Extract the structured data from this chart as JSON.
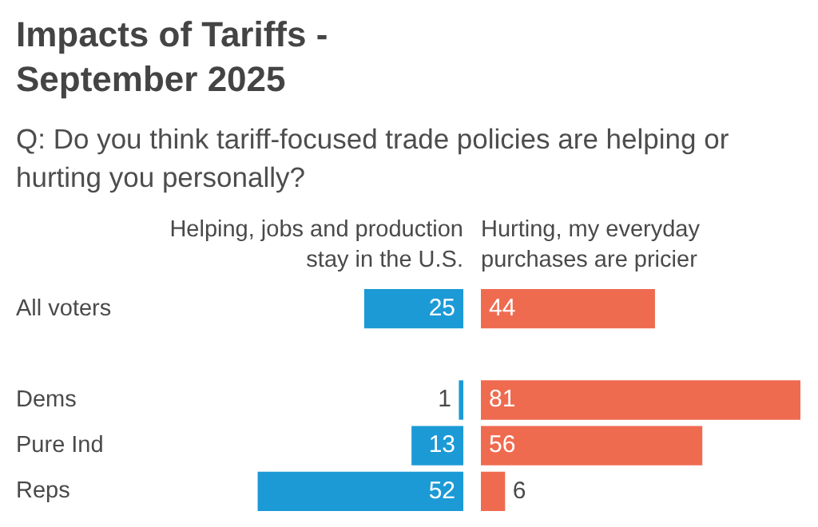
{
  "chart_data": [
    {
      "type": "bar",
      "orientation": "horizontal",
      "title": "Impacts of Tariffs - September 2025",
      "subtitle": "Q: Do you think tariff-focused trade policies are helping or hurting you personally?",
      "categories": [
        "All voters",
        null,
        "Dems",
        "Pure Ind",
        "Reps"
      ],
      "series": [
        {
          "name": "Helping, jobs and production stay in the U.S.",
          "color": "#1c9ad6",
          "values": [
            25,
            null,
            1,
            13,
            52
          ]
        }
      ],
      "data_labels": true,
      "tick_labels": "y"
    },
    {
      "type": "bar",
      "orientation": "horizontal",
      "categories": [
        null,
        null,
        null,
        null,
        null
      ],
      "series": [
        {
          "name": "Hurting, my everyday purchases are pricier",
          "color": "#ef6b50",
          "values": [
            44,
            null,
            81,
            56,
            6
          ]
        }
      ],
      "data_labels": true,
      "tick_labels": false
    }
  ]
}
